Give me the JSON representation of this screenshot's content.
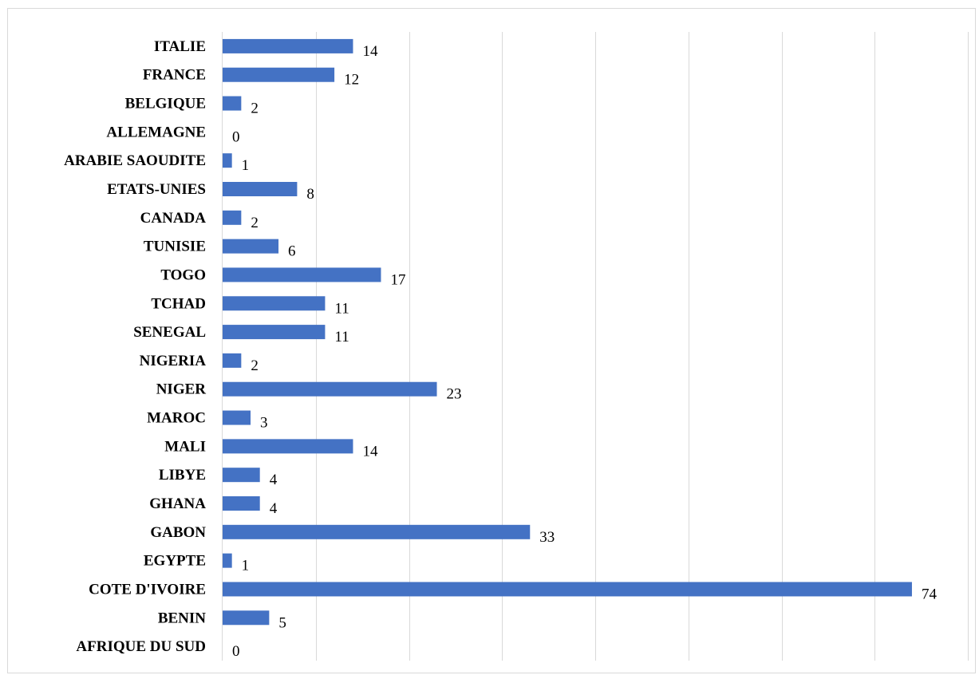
{
  "chart_data": {
    "type": "bar",
    "orientation": "horizontal",
    "title": "",
    "xlabel": "",
    "ylabel": "",
    "categories": [
      "ITALIE",
      "FRANCE",
      "BELGIQUE",
      "ALLEMAGNE",
      "ARABIE SAOUDITE",
      "ETATS-UNIES",
      "CANADA",
      "TUNISIE",
      "TOGO",
      "TCHAD",
      "SENEGAL",
      "NIGERIA",
      "NIGER",
      "MAROC",
      "MALI",
      "LIBYE",
      "GHANA",
      "GABON",
      "EGYPTE",
      "COTE D'IVOIRE",
      "BENIN",
      "AFRIQUE DU SUD"
    ],
    "values": [
      14,
      12,
      2,
      0,
      1,
      8,
      2,
      6,
      17,
      11,
      11,
      2,
      23,
      3,
      14,
      4,
      4,
      33,
      1,
      74,
      5,
      0
    ],
    "xlim": [
      0,
      80
    ],
    "grid": true,
    "bar_color": "#4472c4",
    "legend": "none",
    "data_labels": true
  }
}
